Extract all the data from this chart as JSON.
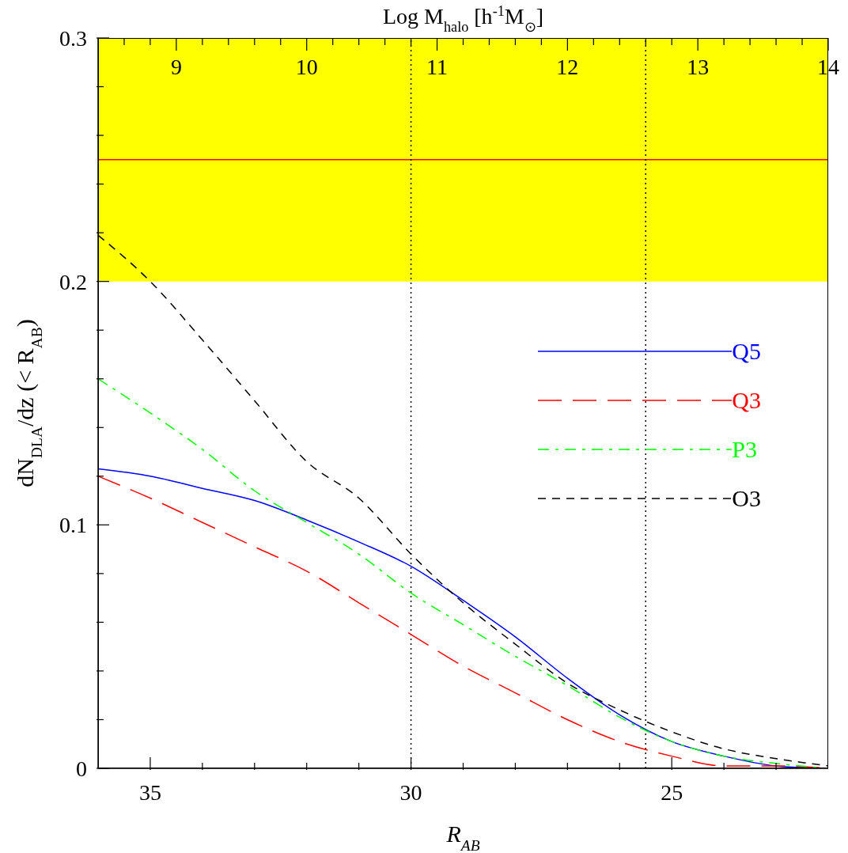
{
  "chart_data": {
    "type": "line",
    "xlabel": "R$_{AB}$",
    "ylabel": "dN$_{DLA}$/dz (< R$_{AB}$)",
    "x2label": "Log M$_{halo}$ [h$^{-1}$M$_{⊙}$]",
    "x": [
      36,
      35,
      34,
      33,
      32,
      31,
      30,
      29,
      28,
      27,
      26,
      25,
      24,
      23,
      22
    ],
    "series": [
      {
        "name": "Q5",
        "color": "#0000ff",
        "line_style": "solid",
        "values": [
          0.123,
          0.12,
          0.115,
          0.11,
          0.102,
          0.093,
          0.083,
          0.069,
          0.054,
          0.037,
          0.022,
          0.011,
          0.005,
          0.001,
          0
        ]
      },
      {
        "name": "Q3",
        "color": "#ff0000",
        "line_style": "dashed",
        "values": [
          0.12,
          0.111,
          0.101,
          0.091,
          0.081,
          0.068,
          0.055,
          0.042,
          0.031,
          0.02,
          0.011,
          0.005,
          0.001,
          0.001,
          0
        ]
      },
      {
        "name": "P3",
        "color": "#00ff00",
        "line_style": "dashed",
        "values": [
          0.16,
          0.146,
          0.131,
          0.114,
          0.101,
          0.088,
          0.072,
          0.059,
          0.046,
          0.034,
          0.021,
          0.011,
          0.005,
          0.002,
          0
        ]
      },
      {
        "name": "O3",
        "color": "#000000",
        "line_style": "dashed",
        "values": [
          0.219,
          0.2,
          0.176,
          0.151,
          0.126,
          0.111,
          0.088,
          0.068,
          0.051,
          0.035,
          0.024,
          0.015,
          0.008,
          0.004,
          0.001
        ]
      }
    ],
    "xlim": [
      36,
      22
    ],
    "xticks": [
      {
        "value": 34,
        "label": null
      },
      {
        "value": 33,
        "label": null
      },
      {
        "value": 32,
        "label": null
      },
      {
        "value": 31,
        "label": null
      },
      {
        "value": 29,
        "label": null
      },
      {
        "value": 28,
        "label": null
      },
      {
        "value": 27,
        "label": null
      },
      {
        "value": 26,
        "label": null
      },
      {
        "value": 24,
        "label": null
      },
      {
        "value": 23,
        "label": null
      },
      35,
      30,
      25
    ],
    "ylim": [
      0,
      0.3
    ],
    "yticks": [
      0,
      {
        "value": 0.02,
        "label": null
      },
      {
        "value": 0.04,
        "label": null
      },
      {
        "value": 0.06,
        "label": null
      },
      {
        "value": 0.08,
        "label": null
      },
      0.1,
      {
        "value": 0.12,
        "label": null
      },
      {
        "value": 0.14,
        "label": null
      },
      {
        "value": 0.16,
        "label": null
      },
      {
        "value": 0.18,
        "label": null
      },
      0.2,
      {
        "value": 0.22,
        "label": null
      },
      {
        "value": 0.24,
        "label": null
      },
      {
        "value": 0.26,
        "label": null
      },
      {
        "value": 0.28,
        "label": null
      },
      0.3
    ],
    "x2lim": [
      8.4,
      14
    ],
    "x2ticks": [
      {
        "value": 8.6,
        "label": null
      },
      {
        "value": 8.8,
        "label": null
      },
      9,
      {
        "value": 9.2,
        "label": null
      },
      {
        "value": 9.4,
        "label": null
      },
      {
        "value": 9.6,
        "label": null
      },
      {
        "value": 9.8,
        "label": null
      },
      10,
      {
        "value": 10.2,
        "label": null
      },
      {
        "value": 10.4,
        "label": null
      },
      {
        "value": 10.6,
        "label": null
      },
      {
        "value": 10.8,
        "label": null
      },
      11,
      {
        "value": 11.2,
        "label": null
      },
      {
        "value": 11.4,
        "label": null
      },
      {
        "value": 11.6,
        "label": null
      },
      {
        "value": 11.8,
        "label": null
      },
      12,
      {
        "value": 12.2,
        "label": null
      },
      {
        "value": 12.4,
        "label": null
      },
      {
        "value": 12.6,
        "label": null
      },
      {
        "value": 12.8,
        "label": null
      },
      13,
      {
        "value": 13.2,
        "label": null
      },
      {
        "value": 13.4,
        "label": null
      },
      {
        "value": 13.6,
        "label": null
      },
      {
        "value": 13.8,
        "label": null
      },
      14
    ],
    "bands": [
      {
        "axis": "y",
        "from": 0.2,
        "to": 0.3,
        "color": "#ffff00"
      }
    ],
    "ref_lines": [
      {
        "axis": "y",
        "value": 0.25,
        "color": "#ff0000",
        "line_style": "solid"
      },
      {
        "axis": "x",
        "value": 30,
        "color": "#000000",
        "line_style": "dotted"
      },
      {
        "axis": "x",
        "value": 25.5,
        "color": "#000000",
        "line_style": "dotted"
      }
    ],
    "grid": false,
    "legend": "right"
  }
}
